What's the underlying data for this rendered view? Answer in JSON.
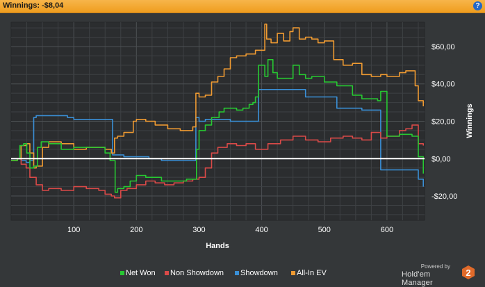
{
  "header": {
    "title": "Winnings: -$8,04",
    "help_icon": "?"
  },
  "branding": {
    "powered_by": "Powered by",
    "name": "Hold'em Manager",
    "logo_text": "2"
  },
  "colors": {
    "net_won": "#27c832",
    "non_showdown": "#d94a48",
    "showdown": "#3a8fd6",
    "all_in_ev": "#ee9a32"
  },
  "chart_data": {
    "type": "line",
    "xlabel": "Hands",
    "ylabel": "Winnings",
    "xlim": [
      0,
      660
    ],
    "ylim": [
      -33,
      73
    ],
    "x_ticks": [
      100,
      200,
      300,
      400,
      500,
      600
    ],
    "x_tick_labels": [
      "100",
      "200",
      "300",
      "400",
      "500",
      "600"
    ],
    "y_ticks": [
      -20,
      0,
      20,
      40,
      60
    ],
    "y_tick_labels": [
      "-$20,00",
      "$0,00",
      "$20,00",
      "$40,00",
      "$60,00"
    ],
    "grid": true,
    "zero_line": 0,
    "legend_position": "bottom",
    "series": [
      {
        "name": "Net Won",
        "x": [
          0,
          10,
          14,
          20,
          25,
          30,
          36,
          42,
          48,
          60,
          80,
          100,
          120,
          140,
          150,
          158,
          162,
          166,
          170,
          180,
          190,
          200,
          215,
          240,
          260,
          280,
          292,
          296,
          300,
          310,
          320,
          332,
          340,
          350,
          360,
          370,
          380,
          386,
          390,
          395,
          405,
          410,
          418,
          425,
          440,
          450,
          460,
          470,
          480,
          500,
          520,
          540,
          545,
          560,
          585,
          590,
          600,
          610,
          620,
          630,
          640,
          650,
          658
        ],
        "values": [
          -1,
          0,
          7,
          8,
          3,
          -5,
          -4,
          6,
          9,
          8,
          5,
          6,
          6,
          6,
          3,
          -1,
          -1,
          -18,
          -16,
          -15,
          -12,
          -9,
          -10,
          -12,
          -12,
          -11,
          -11,
          5,
          15,
          18,
          22,
          25,
          27,
          27,
          26,
          27,
          29,
          30,
          33,
          50,
          44,
          53,
          46,
          43,
          43,
          50,
          45,
          43,
          44,
          41,
          39,
          39,
          34,
          32,
          31,
          36,
          12,
          12,
          13,
          13,
          12,
          1,
          -8
        ]
      },
      {
        "name": "Non Showdown",
        "x": [
          0,
          10,
          16,
          24,
          30,
          40,
          50,
          60,
          80,
          100,
          120,
          140,
          150,
          160,
          165,
          175,
          185,
          200,
          215,
          230,
          245,
          260,
          275,
          290,
          300,
          310,
          320,
          330,
          345,
          360,
          375,
          390,
          400,
          410,
          430,
          450,
          470,
          490,
          510,
          530,
          545,
          560,
          575,
          590,
          600,
          620,
          630,
          640,
          650,
          658
        ],
        "values": [
          -1,
          0,
          -3,
          -5,
          -10,
          -14,
          -17,
          -16,
          -17,
          -15,
          -16,
          -17,
          -19,
          -20,
          -21,
          -17,
          -16,
          -14,
          -12,
          -13,
          -14,
          -13,
          -12,
          -11,
          -10,
          -5,
          3,
          6,
          8,
          7,
          8,
          5,
          5,
          8,
          10,
          12,
          10,
          9,
          11,
          12,
          11,
          10,
          14,
          11,
          12,
          15,
          16,
          18,
          8,
          7
        ]
      },
      {
        "name": "Showdown",
        "x": [
          0,
          10,
          16,
          24,
          30,
          36,
          40,
          50,
          90,
          100,
          140,
          160,
          162,
          180,
          220,
          240,
          280,
          295,
          300,
          310,
          320,
          330,
          350,
          380,
          395,
          420,
          440,
          470,
          500,
          520,
          560,
          585,
          590,
          600,
          630,
          650,
          658
        ],
        "values": [
          0,
          0,
          -1,
          -2,
          -1,
          22,
          23,
          23,
          22,
          21,
          21,
          21,
          2,
          1,
          0,
          -1,
          -1,
          22,
          20,
          21,
          21,
          21,
          20,
          20,
          37,
          37,
          37,
          33,
          33,
          27,
          26,
          26,
          -6,
          -6,
          -6,
          -11,
          -15
        ]
      },
      {
        "name": "All-In EV",
        "x": [
          0,
          10,
          16,
          24,
          30,
          36,
          40,
          50,
          60,
          80,
          100,
          120,
          140,
          150,
          160,
          165,
          170,
          180,
          195,
          200,
          215,
          230,
          250,
          270,
          290,
          295,
          300,
          310,
          320,
          330,
          340,
          350,
          360,
          375,
          390,
          395,
          405,
          408,
          415,
          425,
          435,
          445,
          450,
          460,
          470,
          480,
          490,
          500,
          515,
          530,
          545,
          560,
          575,
          590,
          600,
          620,
          630,
          645,
          650,
          658
        ],
        "values": [
          -1,
          0,
          7,
          8,
          3,
          -5,
          -4,
          6,
          9,
          8,
          5,
          6,
          6,
          5,
          3,
          11,
          12,
          14,
          20,
          21,
          20,
          18,
          16,
          15,
          17,
          35,
          33,
          34,
          41,
          44,
          48,
          54,
          55,
          56,
          58,
          58,
          72,
          64,
          62,
          67,
          63,
          68,
          70,
          64,
          65,
          64,
          62,
          63,
          53,
          50,
          51,
          45,
          44,
          45,
          44,
          46,
          47,
          39,
          31,
          28
        ]
      }
    ]
  }
}
